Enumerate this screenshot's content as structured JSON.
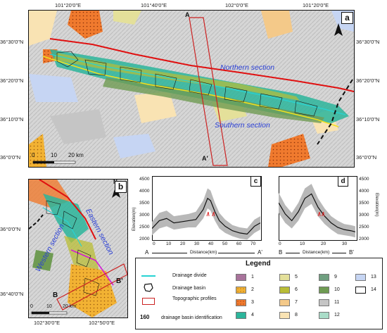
{
  "panel_a": {
    "label": "a",
    "top_coords": [
      "101°20'0\"E",
      "101°40'0\"E",
      "102°0'0\"E",
      "101°20'0\"E"
    ],
    "left_coords": [
      "36°30'0\"N",
      "36°20'0\"N",
      "36°10'0\"N",
      "36°0'0\"N"
    ],
    "right_coords": [
      "36°30'0\"N",
      "36°20'0\"N",
      "36°10'0\"N",
      "36°0'0\"N"
    ],
    "northern_section": "Northern section",
    "southern_section": "Southern section",
    "profile_start": "A",
    "profile_end": "A'",
    "scale_0": "0",
    "scale_10": "10",
    "scale_20": "20 km",
    "north": "N"
  },
  "panel_b": {
    "label": "b",
    "left_coords": [
      "36°0'0\"N",
      "36°40'0\"N"
    ],
    "bottom_coords": [
      "102°30'0\"E",
      "102°50'0\"E"
    ],
    "eastern_section": "Eastern section",
    "western_section": "Western section",
    "profile_start": "B",
    "profile_end": "B'",
    "scale_0": "0",
    "scale_10": "10",
    "scale_20": "20 km",
    "north": "N"
  },
  "panel_c": {
    "label": "c",
    "ylabel": "Elevation(m)",
    "xlabel": "Distance(km)",
    "start": "A",
    "end": "A'",
    "yticks": [
      "4500",
      "4000",
      "3500",
      "3000",
      "2500",
      "2000"
    ],
    "xticks": [
      "0",
      "10",
      "20",
      "30",
      "40",
      "50",
      "60",
      "70"
    ]
  },
  "panel_d": {
    "label": "d",
    "ylabel": "Elevation(m)",
    "xlabel": "Distance(km)",
    "start": "B",
    "end": "B'",
    "yticks": [
      "4500",
      "4000",
      "3500",
      "3000",
      "2500",
      "2000"
    ],
    "xticks": [
      "0",
      "10",
      "20",
      "30"
    ]
  },
  "legend": {
    "title": "Legend",
    "drainage_divide": "Drainage divide",
    "drainage_basin": "Drainage basin",
    "topographic_profiles": "Topographic profiles",
    "basin_id_number": "160",
    "basin_id_text": "drainage basin identification",
    "units": [
      {
        "n": "1",
        "color": "#a8739b"
      },
      {
        "n": "2",
        "color": "#f2b233"
      },
      {
        "n": "3",
        "color": "#f07a2e"
      },
      {
        "n": "4",
        "color": "#2cb59b"
      },
      {
        "n": "5",
        "color": "#e4e09a"
      },
      {
        "n": "6",
        "color": "#b9bd36"
      },
      {
        "n": "7",
        "color": "#f4c989"
      },
      {
        "n": "8",
        "color": "#f9e3b3"
      },
      {
        "n": "9",
        "color": "#6f9f80"
      },
      {
        "n": "10",
        "color": "#6f9b53"
      },
      {
        "n": "11",
        "color": "#c5c5c5"
      },
      {
        "n": "12",
        "color": "#a9dcc8"
      },
      {
        "n": "13",
        "color": "#c6d5f3"
      },
      {
        "n": "14",
        "color": "#ffffff"
      }
    ]
  },
  "profile_c": {
    "x": [
      0,
      5,
      10,
      15,
      20,
      25,
      30,
      35,
      38,
      40,
      43,
      46,
      50,
      55,
      60,
      65,
      70,
      74
    ],
    "mean": [
      2350,
      2700,
      2800,
      2600,
      2650,
      2700,
      2750,
      3200,
      3700,
      3600,
      3100,
      2700,
      2450,
      2250,
      2150,
      2100,
      2450,
      2600
    ],
    "band": [
      300,
      350,
      350,
      300,
      300,
      300,
      350,
      400,
      450,
      450,
      400,
      350,
      300,
      250,
      250,
      250,
      300,
      300
    ]
  },
  "profile_d": {
    "x": [
      0,
      3,
      6,
      9,
      12,
      15,
      18,
      21,
      24,
      27,
      30,
      33,
      35
    ],
    "mean": [
      3500,
      3000,
      2700,
      3100,
      3700,
      3900,
      3300,
      2900,
      2600,
      2400,
      2300,
      2250,
      2200
    ],
    "band": [
      450,
      400,
      350,
      400,
      450,
      450,
      400,
      350,
      300,
      300,
      250,
      250,
      250
    ]
  }
}
